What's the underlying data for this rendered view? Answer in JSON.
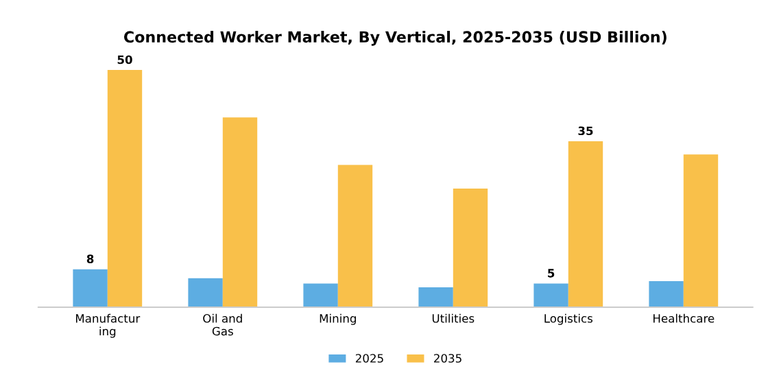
{
  "chart_data": {
    "type": "bar",
    "title": "Connected Worker Market, By Vertical, 2025-2035 (USD Billion)",
    "categories": [
      "Manufactur\ning",
      "Oil and\nGas",
      "Mining",
      "Utilities",
      "Logistics",
      "Healthcare"
    ],
    "series": [
      {
        "name": "2025",
        "color": "#5dade2",
        "values": [
          8,
          6.1,
          5,
          4.2,
          5,
          5.5
        ],
        "value_labels": [
          "8",
          null,
          null,
          null,
          "5",
          null
        ]
      },
      {
        "name": "2035",
        "color": "#f9c04a",
        "values": [
          50,
          40,
          30,
          25,
          35,
          32.2
        ],
        "value_labels": [
          "50",
          null,
          null,
          null,
          "35",
          null
        ]
      }
    ],
    "legend": "bottom",
    "grid": false,
    "tick_labels": "x"
  }
}
